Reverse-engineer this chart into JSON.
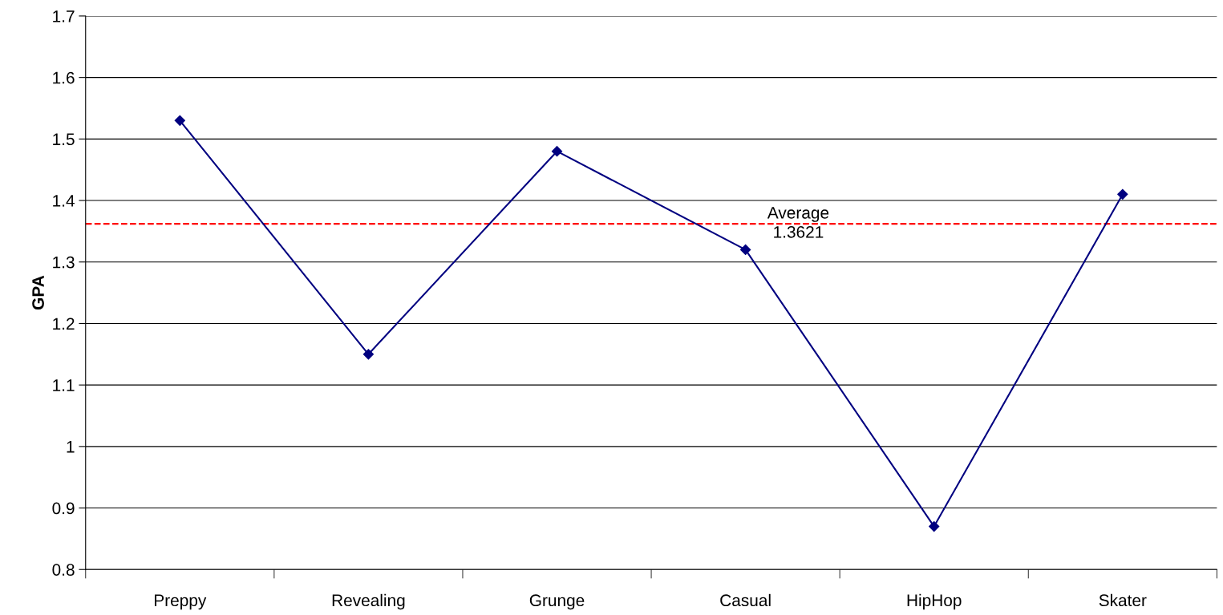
{
  "chart_data": {
    "type": "line",
    "ylabel": "GPA",
    "categories": [
      "Preppy",
      "Revealing",
      "Grunge",
      "Casual",
      "HipHop",
      "Skater"
    ],
    "series": [
      {
        "color": "#000080",
        "values": [
          1.53,
          1.15,
          1.48,
          1.32,
          0.87,
          1.41
        ]
      }
    ],
    "ylim": [
      0.8,
      1.7
    ],
    "yticks": [
      {
        "value": 0.8,
        "label": "0.8"
      },
      {
        "value": 0.9,
        "label": "0.9"
      },
      1,
      {
        "value": 1.1,
        "label": "1.1"
      },
      {
        "value": 1.2,
        "label": "1.2"
      },
      {
        "value": 1.3,
        "label": "1.3"
      },
      {
        "value": 1.4,
        "label": "1.4"
      },
      {
        "value": 1.5,
        "label": "1.5"
      },
      {
        "value": 1.6,
        "label": "1.6"
      },
      {
        "value": 1.7,
        "label": "1.7"
      }
    ],
    "ref_lines": [
      {
        "axis": "y",
        "value": 1.3621,
        "label": "Average\n1.3621",
        "color": "#ff0000",
        "line_style": "dashed"
      }
    ],
    "grid": "y",
    "marker": "diamond",
    "line_style": "solid"
  }
}
